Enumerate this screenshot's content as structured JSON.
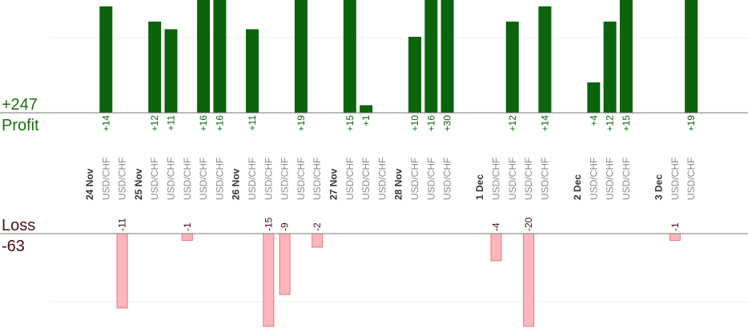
{
  "summary": {
    "profit_total": "+247",
    "profit_label": "Profit",
    "loss_label": "Loss",
    "loss_total": "-63"
  },
  "colors": {
    "profit_bar": "#0b640b",
    "profit_label": "#1e6e12",
    "loss_bar": "#ffb6bc",
    "loss_bar_edge": "#e7757c",
    "loss_label": "#4a0f0f",
    "axis": "#777777",
    "grid": "#eeeeee"
  },
  "chart_data": {
    "type": "bar",
    "grid": true,
    "ylim_profit": [
      0,
      14
    ],
    "ylim_loss": [
      -11,
      0
    ],
    "columns": [
      {
        "kind": "date",
        "label": "24 Nov"
      },
      {
        "kind": "trade",
        "pair": "USD/CHF",
        "value": 14,
        "label": "+14"
      },
      {
        "kind": "trade",
        "pair": "USD/CHF",
        "value": -11,
        "label": "-11"
      },
      {
        "kind": "date",
        "label": "25 Nov"
      },
      {
        "kind": "trade",
        "pair": "USD/CHF",
        "value": 12,
        "label": "+12"
      },
      {
        "kind": "trade",
        "pair": "USD/CHF",
        "value": 11,
        "label": "+11"
      },
      {
        "kind": "trade",
        "pair": "USD/CHF",
        "value": -1,
        "label": "-1"
      },
      {
        "kind": "trade",
        "pair": "USD/CHF",
        "value": 16,
        "label": "+16"
      },
      {
        "kind": "trade",
        "pair": "USD/CHF",
        "value": 16,
        "label": "+16"
      },
      {
        "kind": "date",
        "label": "26 Nov"
      },
      {
        "kind": "trade",
        "pair": "USD/CHF",
        "value": 11,
        "label": "+11"
      },
      {
        "kind": "trade",
        "pair": "USD/CHF",
        "value": -15,
        "label": "-15"
      },
      {
        "kind": "trade",
        "pair": "USD/CHF",
        "value": -9,
        "label": "-9"
      },
      {
        "kind": "trade",
        "pair": "USD/CHF",
        "value": 19,
        "label": "+19"
      },
      {
        "kind": "trade",
        "pair": "USD/CHF",
        "value": -2,
        "label": "-2"
      },
      {
        "kind": "date",
        "label": "27 Nov"
      },
      {
        "kind": "trade",
        "pair": "USD/CHF",
        "value": 15,
        "label": "+15"
      },
      {
        "kind": "trade",
        "pair": "USD/CHF",
        "value": 1,
        "label": "+1"
      },
      {
        "kind": "trade",
        "pair": "USD/CHF",
        "value": null,
        "label": ""
      },
      {
        "kind": "date",
        "label": "28 Nov"
      },
      {
        "kind": "trade",
        "pair": "USD/CHF",
        "value": 10,
        "label": "+10"
      },
      {
        "kind": "trade",
        "pair": "USD/CHF",
        "value": 16,
        "label": "+16"
      },
      {
        "kind": "trade",
        "pair": "USD/CHF",
        "value": 30,
        "label": "+30"
      },
      {
        "kind": "spacer"
      },
      {
        "kind": "date",
        "label": "1 Dec"
      },
      {
        "kind": "trade",
        "pair": "USD/CHF",
        "value": -4,
        "label": "-4"
      },
      {
        "kind": "trade",
        "pair": "USD/CHF",
        "value": 12,
        "label": "+12"
      },
      {
        "kind": "trade",
        "pair": "USD/CHF",
        "value": -20,
        "label": "-20"
      },
      {
        "kind": "trade",
        "pair": "USD/CHF",
        "value": 14,
        "label": "+14"
      },
      {
        "kind": "spacer"
      },
      {
        "kind": "date",
        "label": "2 Dec"
      },
      {
        "kind": "trade",
        "pair": "USD/CHF",
        "value": 4,
        "label": "+4"
      },
      {
        "kind": "trade",
        "pair": "USD/CHF",
        "value": 12,
        "label": "+12"
      },
      {
        "kind": "trade",
        "pair": "USD/CHF",
        "value": 15,
        "label": "+15"
      },
      {
        "kind": "spacer"
      },
      {
        "kind": "date",
        "label": "3 Dec"
      },
      {
        "kind": "trade",
        "pair": "USD/CHF",
        "value": -1,
        "label": "-1"
      },
      {
        "kind": "trade",
        "pair": "USD/CHF",
        "value": 19,
        "label": "+19"
      }
    ]
  }
}
